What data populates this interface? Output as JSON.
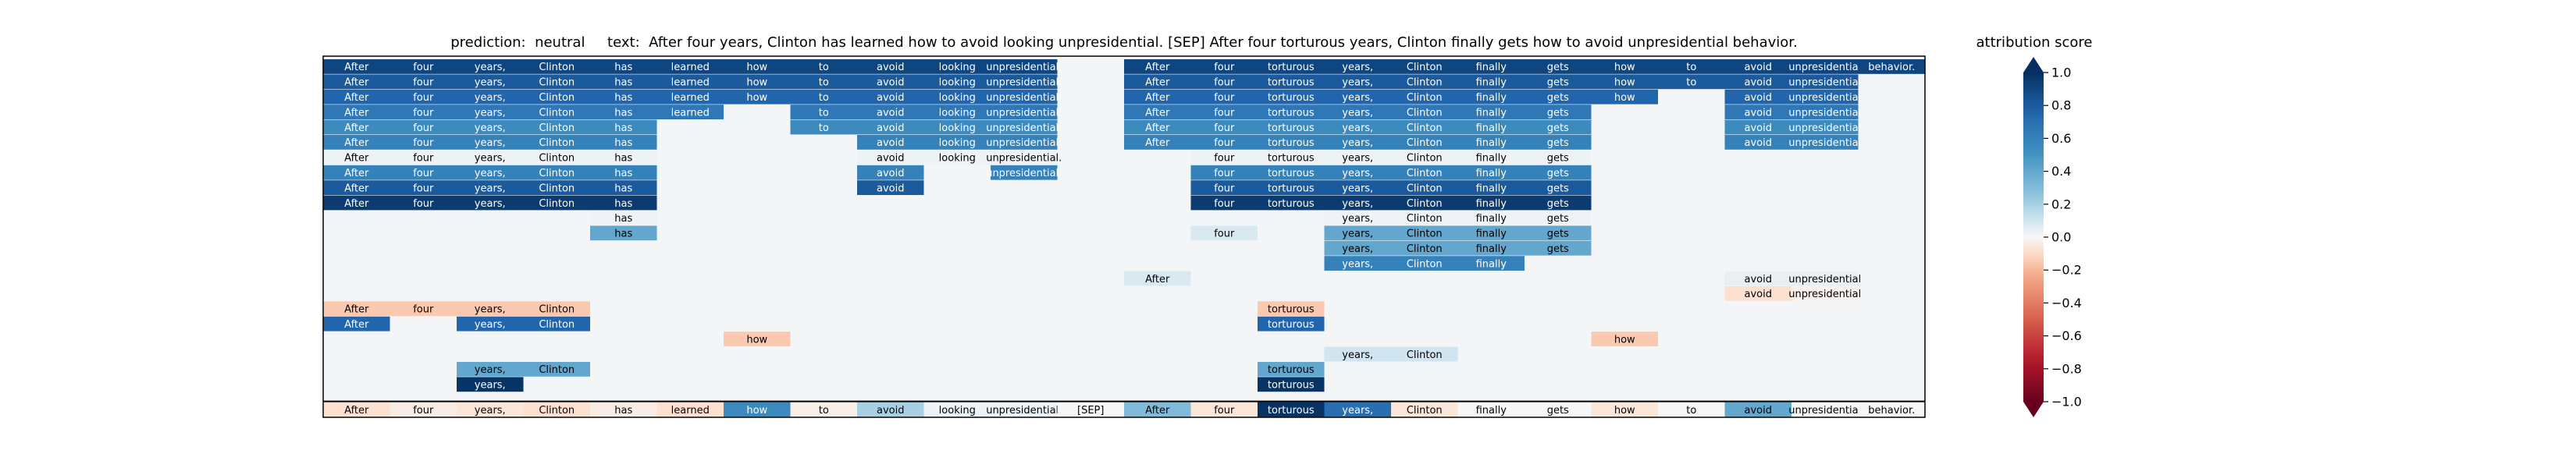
{
  "chart_data": {
    "type": "heatmap",
    "title": "prediction:  neutral     text:  After four years, Clinton has learned how to avoid looking unpresidential. [SEP] After four torturous years, Clinton finally gets how to avoid unpresidential behavior.",
    "tokens": [
      "After",
      "four",
      "years,",
      "Clinton",
      "has",
      "learned",
      "how",
      "to",
      "avoid",
      "looking",
      "unpresidential.",
      "[SEP]",
      "After",
      "four",
      "torturous",
      "years,",
      "Clinton",
      "finally",
      "gets",
      "how",
      "to",
      "avoid",
      "unpresidential",
      "behavior."
    ],
    "rows": [
      {
        "cells": [
          [
            0,
            0.9
          ],
          [
            1,
            0.9
          ],
          [
            2,
            0.9
          ],
          [
            3,
            0.9
          ],
          [
            4,
            0.9
          ],
          [
            5,
            0.9
          ],
          [
            6,
            0.9
          ],
          [
            7,
            0.9
          ],
          [
            8,
            0.9
          ],
          [
            9,
            0.9
          ],
          [
            10,
            0.9
          ],
          [
            12,
            0.9
          ],
          [
            13,
            0.9
          ],
          [
            14,
            0.9
          ],
          [
            15,
            0.9
          ],
          [
            16,
            0.9
          ],
          [
            17,
            0.9
          ],
          [
            18,
            0.9
          ],
          [
            19,
            0.9
          ],
          [
            20,
            0.9
          ],
          [
            21,
            0.9
          ],
          [
            22,
            0.9
          ],
          [
            23,
            0.9
          ]
        ]
      },
      {
        "cells": [
          [
            0,
            0.8
          ],
          [
            1,
            0.8
          ],
          [
            2,
            0.8
          ],
          [
            3,
            0.8
          ],
          [
            4,
            0.8
          ],
          [
            5,
            0.8
          ],
          [
            6,
            0.8
          ],
          [
            7,
            0.8
          ],
          [
            8,
            0.8
          ],
          [
            9,
            0.8
          ],
          [
            10,
            0.8
          ],
          [
            12,
            0.8
          ],
          [
            13,
            0.8
          ],
          [
            14,
            0.8
          ],
          [
            15,
            0.8
          ],
          [
            16,
            0.8
          ],
          [
            17,
            0.8
          ],
          [
            18,
            0.8
          ],
          [
            19,
            0.8
          ],
          [
            20,
            0.8
          ],
          [
            21,
            0.8
          ],
          [
            22,
            0.8
          ]
        ]
      },
      {
        "cells": [
          [
            0,
            0.75
          ],
          [
            1,
            0.75
          ],
          [
            2,
            0.75
          ],
          [
            3,
            0.75
          ],
          [
            4,
            0.75
          ],
          [
            5,
            0.75
          ],
          [
            6,
            0.75
          ],
          [
            7,
            0.75
          ],
          [
            8,
            0.75
          ],
          [
            9,
            0.75
          ],
          [
            10,
            0.75
          ],
          [
            12,
            0.75
          ],
          [
            13,
            0.75
          ],
          [
            14,
            0.75
          ],
          [
            15,
            0.75
          ],
          [
            16,
            0.75
          ],
          [
            17,
            0.75
          ],
          [
            18,
            0.75
          ],
          [
            19,
            0.75
          ],
          [
            21,
            0.75
          ],
          [
            22,
            0.75
          ]
        ]
      },
      {
        "cells": [
          [
            0,
            0.65
          ],
          [
            1,
            0.65
          ],
          [
            2,
            0.65
          ],
          [
            3,
            0.65
          ],
          [
            4,
            0.65
          ],
          [
            5,
            0.65
          ],
          [
            7,
            0.65
          ],
          [
            8,
            0.65
          ],
          [
            9,
            0.65
          ],
          [
            10,
            0.65
          ],
          [
            12,
            0.65
          ],
          [
            13,
            0.65
          ],
          [
            14,
            0.65
          ],
          [
            15,
            0.65
          ],
          [
            16,
            0.65
          ],
          [
            17,
            0.65
          ],
          [
            18,
            0.65
          ],
          [
            21,
            0.65
          ],
          [
            22,
            0.65
          ]
        ]
      },
      {
        "cells": [
          [
            0,
            0.55
          ],
          [
            1,
            0.55
          ],
          [
            2,
            0.55
          ],
          [
            3,
            0.55
          ],
          [
            4,
            0.55
          ],
          [
            7,
            0.55
          ],
          [
            8,
            0.55
          ],
          [
            9,
            0.55
          ],
          [
            10,
            0.55
          ],
          [
            12,
            0.55
          ],
          [
            13,
            0.55
          ],
          [
            14,
            0.55
          ],
          [
            15,
            0.55
          ],
          [
            16,
            0.55
          ],
          [
            17,
            0.55
          ],
          [
            18,
            0.55
          ],
          [
            21,
            0.55
          ],
          [
            22,
            0.55
          ]
        ]
      },
      {
        "cells": [
          [
            0,
            0.6
          ],
          [
            1,
            0.6
          ],
          [
            2,
            0.6
          ],
          [
            3,
            0.6
          ],
          [
            4,
            0.6
          ],
          [
            8,
            0.6
          ],
          [
            9,
            0.6
          ],
          [
            10,
            0.6
          ],
          [
            12,
            0.6
          ],
          [
            13,
            0.6
          ],
          [
            14,
            0.6
          ],
          [
            15,
            0.6
          ],
          [
            16,
            0.6
          ],
          [
            17,
            0.6
          ],
          [
            18,
            0.6
          ],
          [
            21,
            0.6
          ],
          [
            22,
            0.6
          ]
        ]
      },
      {
        "cells": [
          [
            0,
            0.03
          ],
          [
            1,
            0.03
          ],
          [
            2,
            0.03
          ],
          [
            3,
            0.03
          ],
          [
            4,
            0.03
          ],
          [
            8,
            0.03
          ],
          [
            9,
            0.03
          ],
          [
            10,
            0.03
          ],
          [
            13,
            0.03
          ],
          [
            14,
            0.03
          ],
          [
            15,
            0.03
          ],
          [
            16,
            0.03
          ],
          [
            17,
            0.03
          ],
          [
            18,
            0.03
          ]
        ]
      },
      {
        "cells": [
          [
            0,
            0.6
          ],
          [
            1,
            0.6
          ],
          [
            2,
            0.6
          ],
          [
            3,
            0.6
          ],
          [
            4,
            0.6
          ],
          [
            8,
            0.6
          ],
          [
            10,
            0.6
          ],
          [
            13,
            0.6
          ],
          [
            14,
            0.6
          ],
          [
            15,
            0.6
          ],
          [
            16,
            0.6
          ],
          [
            17,
            0.6
          ],
          [
            18,
            0.6
          ]
        ]
      },
      {
        "cells": [
          [
            0,
            0.8
          ],
          [
            1,
            0.8
          ],
          [
            2,
            0.8
          ],
          [
            3,
            0.8
          ],
          [
            4,
            0.8
          ],
          [
            8,
            0.8
          ],
          [
            13,
            0.8
          ],
          [
            14,
            0.8
          ],
          [
            15,
            0.8
          ],
          [
            16,
            0.8
          ],
          [
            17,
            0.8
          ],
          [
            18,
            0.8
          ]
        ]
      },
      {
        "cells": [
          [
            0,
            0.95
          ],
          [
            1,
            0.95
          ],
          [
            2,
            0.95
          ],
          [
            3,
            0.95
          ],
          [
            4,
            0.95
          ],
          [
            13,
            0.95
          ],
          [
            14,
            0.95
          ],
          [
            15,
            0.95
          ],
          [
            16,
            0.95
          ],
          [
            17,
            0.95
          ],
          [
            18,
            0.95
          ]
        ]
      },
      {
        "cells": [
          [
            4,
            0.02
          ],
          [
            15,
            0.02
          ],
          [
            16,
            0.02
          ],
          [
            17,
            0.02
          ],
          [
            18,
            0.02
          ]
        ]
      },
      {
        "cells": [
          [
            4,
            0.4
          ],
          [
            13,
            0.08
          ],
          [
            15,
            0.4
          ],
          [
            16,
            0.4
          ],
          [
            17,
            0.4
          ],
          [
            18,
            0.4
          ]
        ]
      },
      {
        "cells": [
          [
            15,
            0.4
          ],
          [
            16,
            0.4
          ],
          [
            17,
            0.4
          ],
          [
            18,
            0.4
          ]
        ]
      },
      {
        "cells": [
          [
            15,
            0.6
          ],
          [
            16,
            0.6
          ],
          [
            17,
            0.6
          ]
        ]
      },
      {
        "cells": [
          [
            12,
            0.08
          ],
          [
            21,
            0.04
          ],
          [
            22,
            0.04
          ]
        ]
      },
      {
        "cells": [
          [
            21,
            -0.08
          ],
          [
            22,
            -0.02
          ]
        ]
      },
      {
        "cells": [
          [
            0,
            -0.15
          ],
          [
            1,
            -0.15
          ],
          [
            2,
            -0.15
          ],
          [
            3,
            -0.15
          ],
          [
            14,
            -0.15
          ]
        ]
      },
      {
        "cells": [
          [
            0,
            0.75
          ],
          [
            2,
            0.75
          ],
          [
            3,
            0.75
          ],
          [
            14,
            0.75
          ]
        ]
      },
      {
        "cells": [
          [
            6,
            -0.15
          ],
          [
            19,
            -0.15
          ]
        ]
      },
      {
        "cells": [
          [
            15,
            0.1
          ],
          [
            16,
            0.1
          ]
        ]
      },
      {
        "cells": [
          [
            2,
            0.4
          ],
          [
            3,
            0.4
          ],
          [
            14,
            0.4
          ]
        ]
      },
      {
        "cells": [
          [
            2,
            0.98
          ],
          [
            14,
            0.98
          ]
        ]
      },
      {
        "cells": [
          [
            0,
            -0.08
          ],
          [
            1,
            -0.04
          ],
          [
            2,
            -0.06
          ],
          [
            3,
            -0.08
          ],
          [
            4,
            -0.04
          ],
          [
            5,
            -0.08
          ],
          [
            6,
            0.55
          ],
          [
            7,
            -0.03
          ],
          [
            8,
            0.2
          ],
          [
            9,
            0.03
          ],
          [
            10,
            0.03
          ],
          [
            11,
            0.0
          ],
          [
            12,
            0.3
          ],
          [
            13,
            -0.06
          ],
          [
            14,
            0.99
          ],
          [
            15,
            0.7
          ],
          [
            16,
            -0.06
          ],
          [
            17,
            0.0
          ],
          [
            18,
            0.0
          ],
          [
            19,
            -0.06
          ],
          [
            20,
            0.0
          ],
          [
            21,
            0.4
          ],
          [
            22,
            0.0
          ],
          [
            23,
            0.0
          ]
        ]
      }
    ],
    "colorbar": {
      "label": "attribution score",
      "min": -1.0,
      "max": 1.0,
      "ticks": [
        1.0,
        0.8,
        0.6,
        0.4,
        0.2,
        0.0,
        -0.2,
        -0.4,
        -0.6,
        -0.8,
        -1.0
      ],
      "tick_labels": [
        "1.0",
        "0.8",
        "0.6",
        "0.4",
        "0.2",
        "0.0",
        "−0.2",
        "−0.4",
        "−0.6",
        "−0.8",
        "−1.0"
      ],
      "colormap": "RdBu"
    }
  }
}
